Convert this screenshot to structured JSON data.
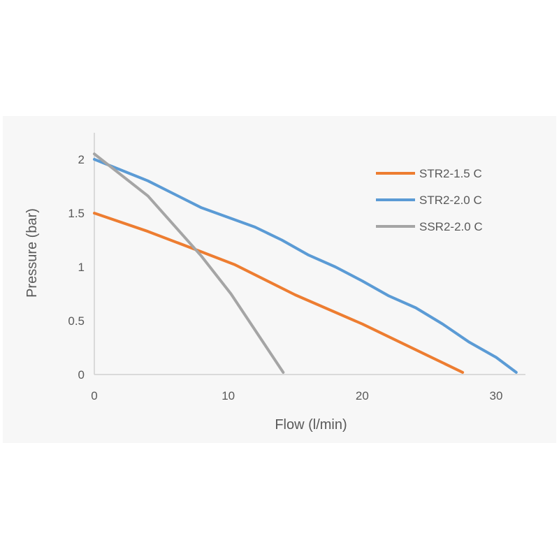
{
  "chart_data": {
    "type": "line",
    "title": "",
    "xlabel": "Flow (l/min)",
    "ylabel": "Pressure (bar)",
    "xlim": [
      0,
      32
    ],
    "ylim": [
      0,
      2.2
    ],
    "x_ticks": [
      0,
      10,
      20,
      30
    ],
    "y_ticks": [
      0,
      0.5,
      1,
      1.5,
      2
    ],
    "y_tick_labels": [
      "0",
      "0.5",
      "1",
      "1.5",
      "2"
    ],
    "x_tick_labels": [
      "0",
      "10",
      "20",
      "30"
    ],
    "grid": false,
    "legend_position": "top-right",
    "series": [
      {
        "name": "STR2-1.5 C",
        "color": "#ed7d31",
        "points": [
          [
            0,
            1.5
          ],
          [
            4,
            1.33
          ],
          [
            8,
            1.14
          ],
          [
            10.5,
            1.02
          ],
          [
            15,
            0.74
          ],
          [
            20,
            0.47
          ],
          [
            24,
            0.23
          ],
          [
            27.5,
            0.02
          ]
        ]
      },
      {
        "name": "STR2-2.0 C",
        "color": "#5b9bd5",
        "points": [
          [
            0,
            2.0
          ],
          [
            4,
            1.8
          ],
          [
            8,
            1.55
          ],
          [
            12,
            1.37
          ],
          [
            14,
            1.25
          ],
          [
            16,
            1.11
          ],
          [
            18,
            1.0
          ],
          [
            20,
            0.87
          ],
          [
            22,
            0.73
          ],
          [
            24,
            0.62
          ],
          [
            26,
            0.47
          ],
          [
            28,
            0.3
          ],
          [
            30,
            0.16
          ],
          [
            31.5,
            0.02
          ]
        ]
      },
      {
        "name": "SSR2-2.0 C",
        "color": "#a5a5a5",
        "points": [
          [
            0,
            2.05
          ],
          [
            4,
            1.66
          ],
          [
            8,
            1.1
          ],
          [
            10.2,
            0.75
          ],
          [
            14.1,
            0.02
          ]
        ]
      }
    ]
  }
}
